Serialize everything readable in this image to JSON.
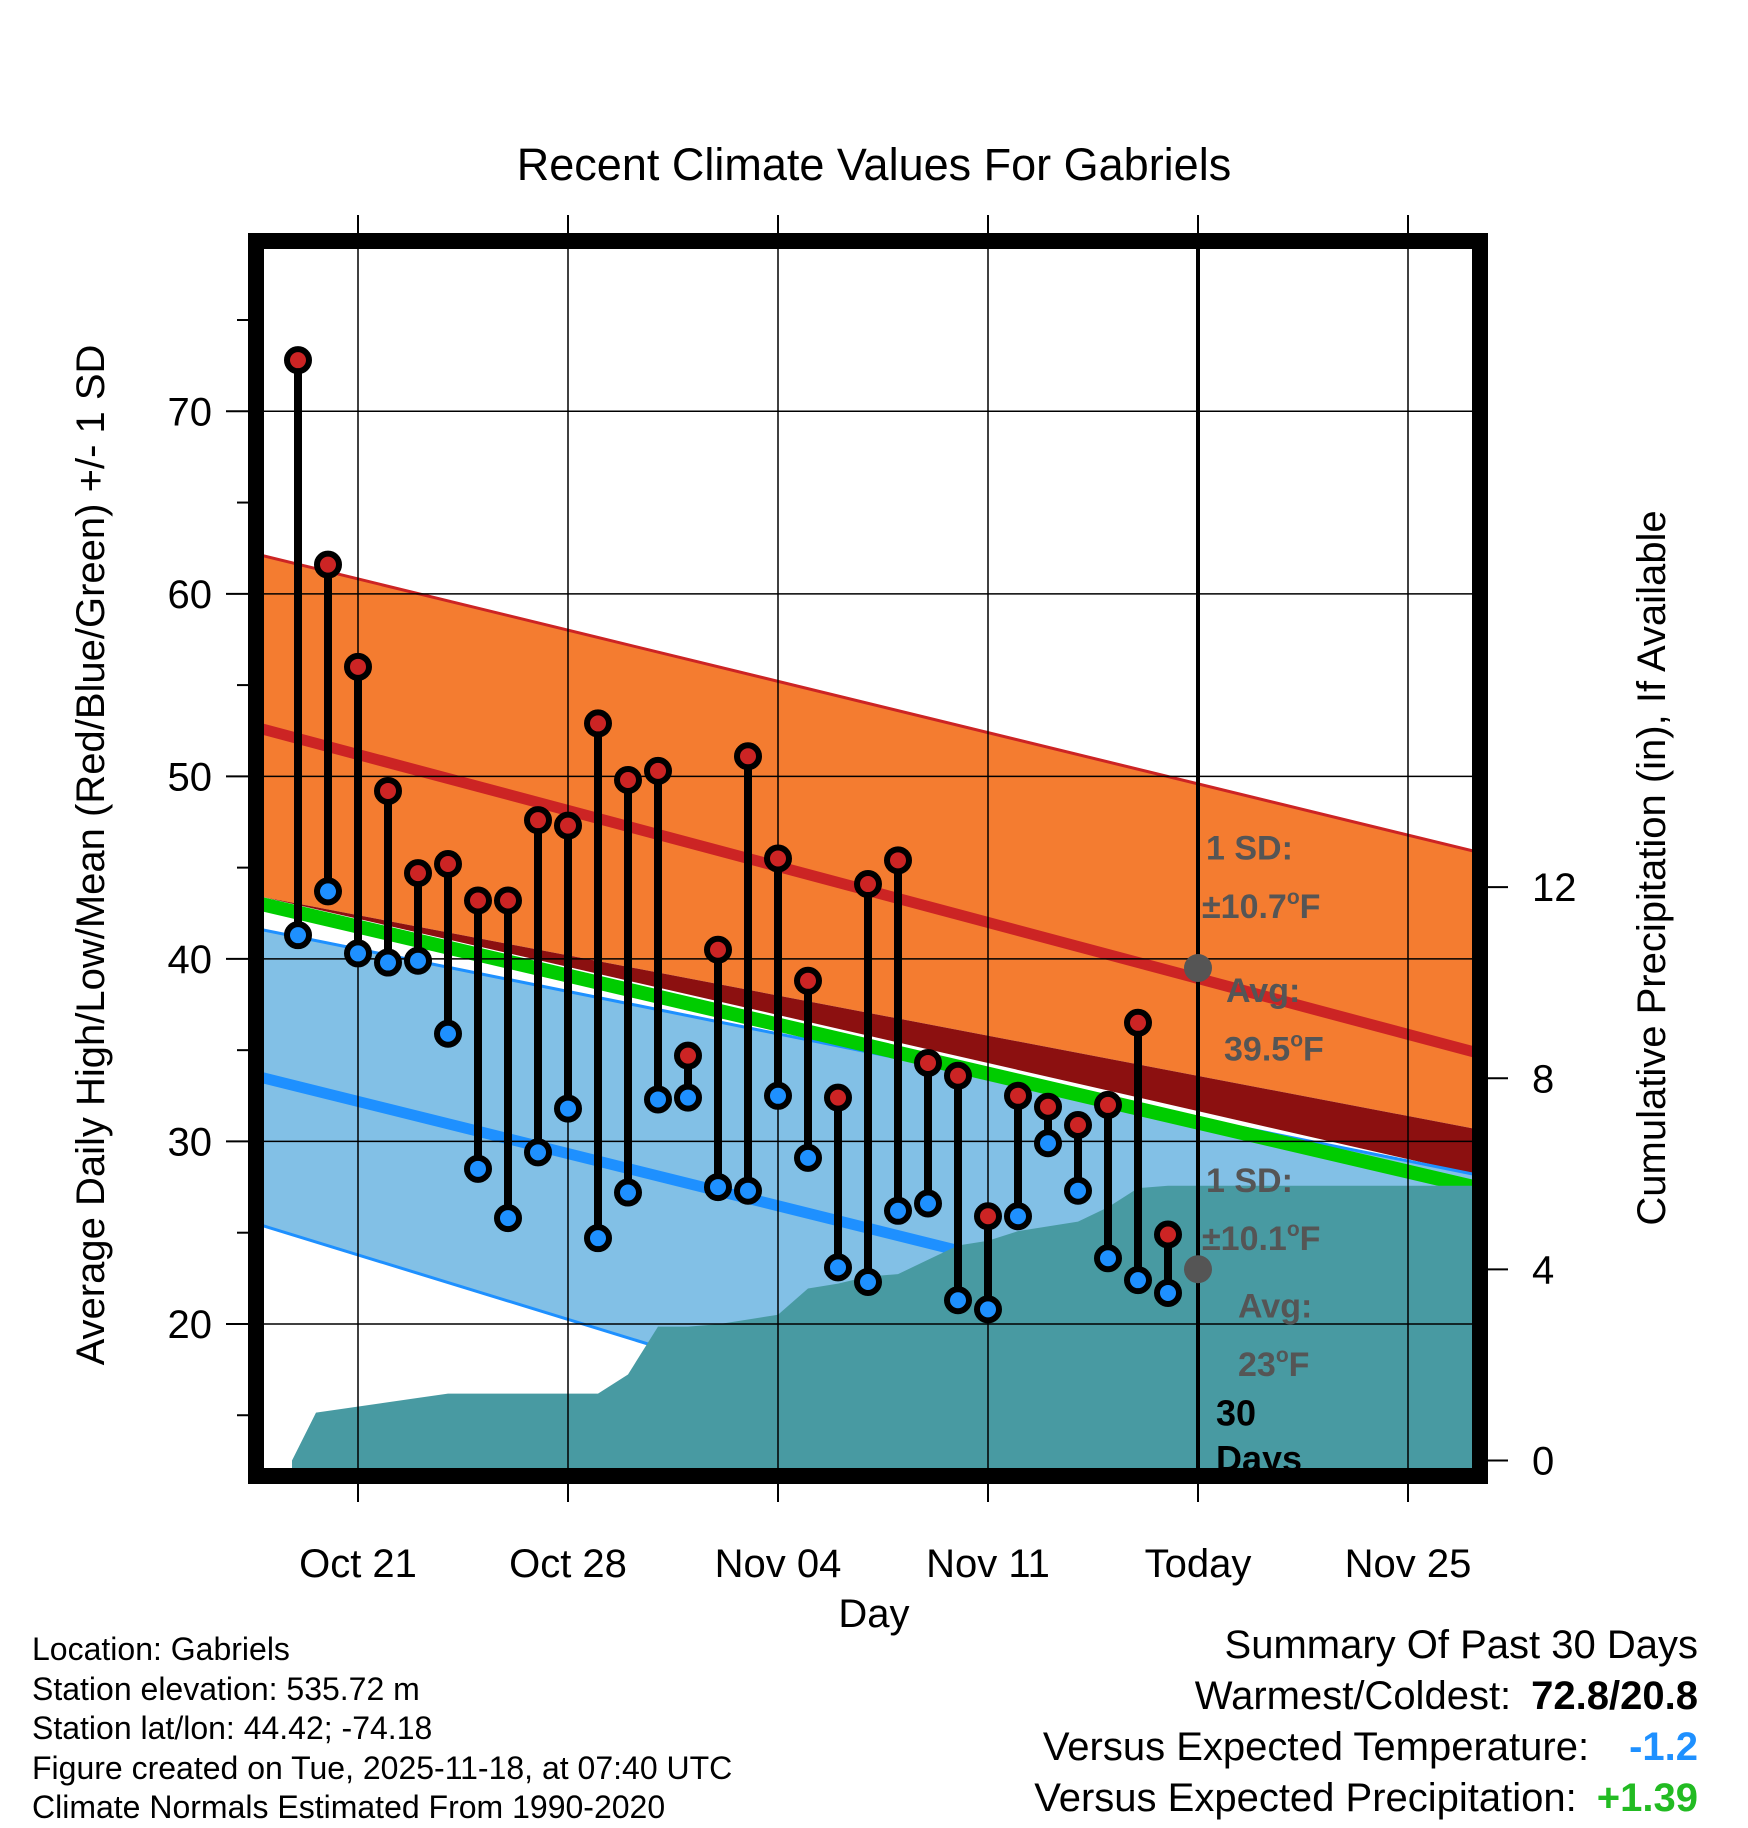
{
  "chart_data": {
    "type": "line",
    "title": "Recent Climate Values For Gabriels",
    "xlabel": "Day",
    "ylabel": "Average Daily High/Low/Mean (Red/Blue/Green) +/- 1 SD",
    "y2label": "Cumulative Precipitation (in), If Available",
    "xlim": [
      -3.2,
      37.2
    ],
    "ylim": [
      12,
      79
    ],
    "y2lim": [
      -0.2,
      25.4
    ],
    "x_ticks": [
      {
        "day": 0,
        "label": "Oct 21"
      },
      {
        "day": 7,
        "label": "Oct 28"
      },
      {
        "day": 14,
        "label": "Nov 04"
      },
      {
        "day": 21,
        "label": "Nov 11"
      },
      {
        "day": 28,
        "label": "Today"
      },
      {
        "day": 35,
        "label": "Nov 25"
      }
    ],
    "y_ticks": [
      20,
      30,
      40,
      50,
      60,
      70
    ],
    "y2_ticks": [
      0,
      4,
      8,
      12
    ],
    "grid": true,
    "today_day": 28,
    "days": [
      -2,
      -1,
      0,
      1,
      2,
      3,
      4,
      5,
      6,
      7,
      8,
      9,
      10,
      11,
      12,
      13,
      14,
      15,
      16,
      17,
      18,
      19,
      20,
      21,
      22,
      23,
      24,
      25,
      26,
      27
    ],
    "highs": [
      72.8,
      61.6,
      56.0,
      49.2,
      44.7,
      45.2,
      43.2,
      43.2,
      47.6,
      47.3,
      52.9,
      49.8,
      50.3,
      34.7,
      40.5,
      51.1,
      45.5,
      38.8,
      32.4,
      44.1,
      45.4,
      34.3,
      33.6,
      25.9,
      32.5,
      31.9,
      30.9,
      32.0,
      36.5,
      24.9
    ],
    "lows": [
      41.3,
      43.7,
      40.3,
      39.8,
      39.9,
      35.9,
      28.5,
      25.8,
      29.4,
      31.8,
      24.7,
      27.2,
      32.3,
      32.4,
      27.5,
      27.3,
      32.5,
      29.1,
      23.1,
      22.3,
      26.2,
      26.6,
      21.3,
      20.8,
      25.9,
      29.9,
      27.3,
      23.6,
      22.4,
      21.7
    ],
    "normal_high_mean": {
      "name": "Normal High",
      "day_start": -3.2,
      "day_end": 37.2,
      "values": [
        52.6,
        34.9
      ]
    },
    "normal_high_sd_band": {
      "upper": [
        62.1,
        45.9
      ],
      "lower": [
        43.4,
        30.7
      ]
    },
    "normal_mean": {
      "name": "Normal Mean",
      "values": [
        43.0,
        27.5
      ]
    },
    "normal_low_mean": {
      "name": "Normal Low",
      "values": [
        33.5,
        17.0
      ]
    },
    "normal_low_sd_band": {
      "upper": [
        41.6,
        28.2
      ],
      "lower": [
        25.4,
        5.0
      ]
    },
    "precip_cumulative": {
      "days": [
        -2.2,
        -1.4,
        3.0,
        5.0,
        6.0,
        8.0,
        9.0,
        10.0,
        11.0,
        12.0,
        14.0,
        15.0,
        16.0,
        17.0,
        18.0,
        19.0,
        20.0,
        21.0,
        22.0,
        23.0,
        24.0,
        25.0,
        26.0,
        27.0,
        28.0,
        37.2
      ],
      "values": [
        0.0,
        1.0,
        1.4,
        1.4,
        1.4,
        1.4,
        1.8,
        2.8,
        2.8,
        2.85,
        3.05,
        3.6,
        3.7,
        3.85,
        3.9,
        4.2,
        4.5,
        4.6,
        4.8,
        4.9,
        5.0,
        5.3,
        5.7,
        5.75,
        5.75,
        5.75
      ]
    },
    "annotations": {
      "high_sd_label": "1 SD:",
      "high_sd_value": "±10.7",
      "high_avg_label": "Avg:",
      "high_avg_value": "39.5",
      "high_avg_point": 39.5,
      "low_sd_label": "1 SD:",
      "low_sd_value": "±10.1",
      "low_avg_label": "Avg:",
      "low_avg_value": "23",
      "low_avg_point": 23.0,
      "degree_unit": "o",
      "unit_letter": "F",
      "days_count": "30",
      "days_word": "Days"
    },
    "colors": {
      "high_band": "#F47C30",
      "high_line": "#CC2424",
      "low_band": "#82C0E6",
      "low_line": "#1E90FF",
      "mean_line": "#00CC00",
      "overlap": "#8C1010",
      "precip": "#489AA2",
      "high_marker": "#CC2424",
      "low_marker": "#1E90FF",
      "annotation_text": "#555555"
    }
  },
  "info": {
    "location": "Location: Gabriels",
    "elevation": "Station elevation: 535.72 m",
    "latlon": "Station lat/lon: 44.42; -74.18",
    "created": "Figure created on Tue, 2025-11-18, at 07:40 UTC",
    "normals": "Climate Normals Estimated From 1990-2020"
  },
  "summary": {
    "title": "Summary Of Past 30 Days",
    "warm_cold_label": "Warmest/Coldest:",
    "warm_cold_value": "72.8/20.8",
    "temp_label": "Versus Expected Temperature:",
    "temp_value": "-1.2",
    "temp_color": "#1E90FF",
    "precip_label": "Versus Expected Precipitation:",
    "precip_value": "+1.39",
    "precip_color": "#22BB22"
  }
}
